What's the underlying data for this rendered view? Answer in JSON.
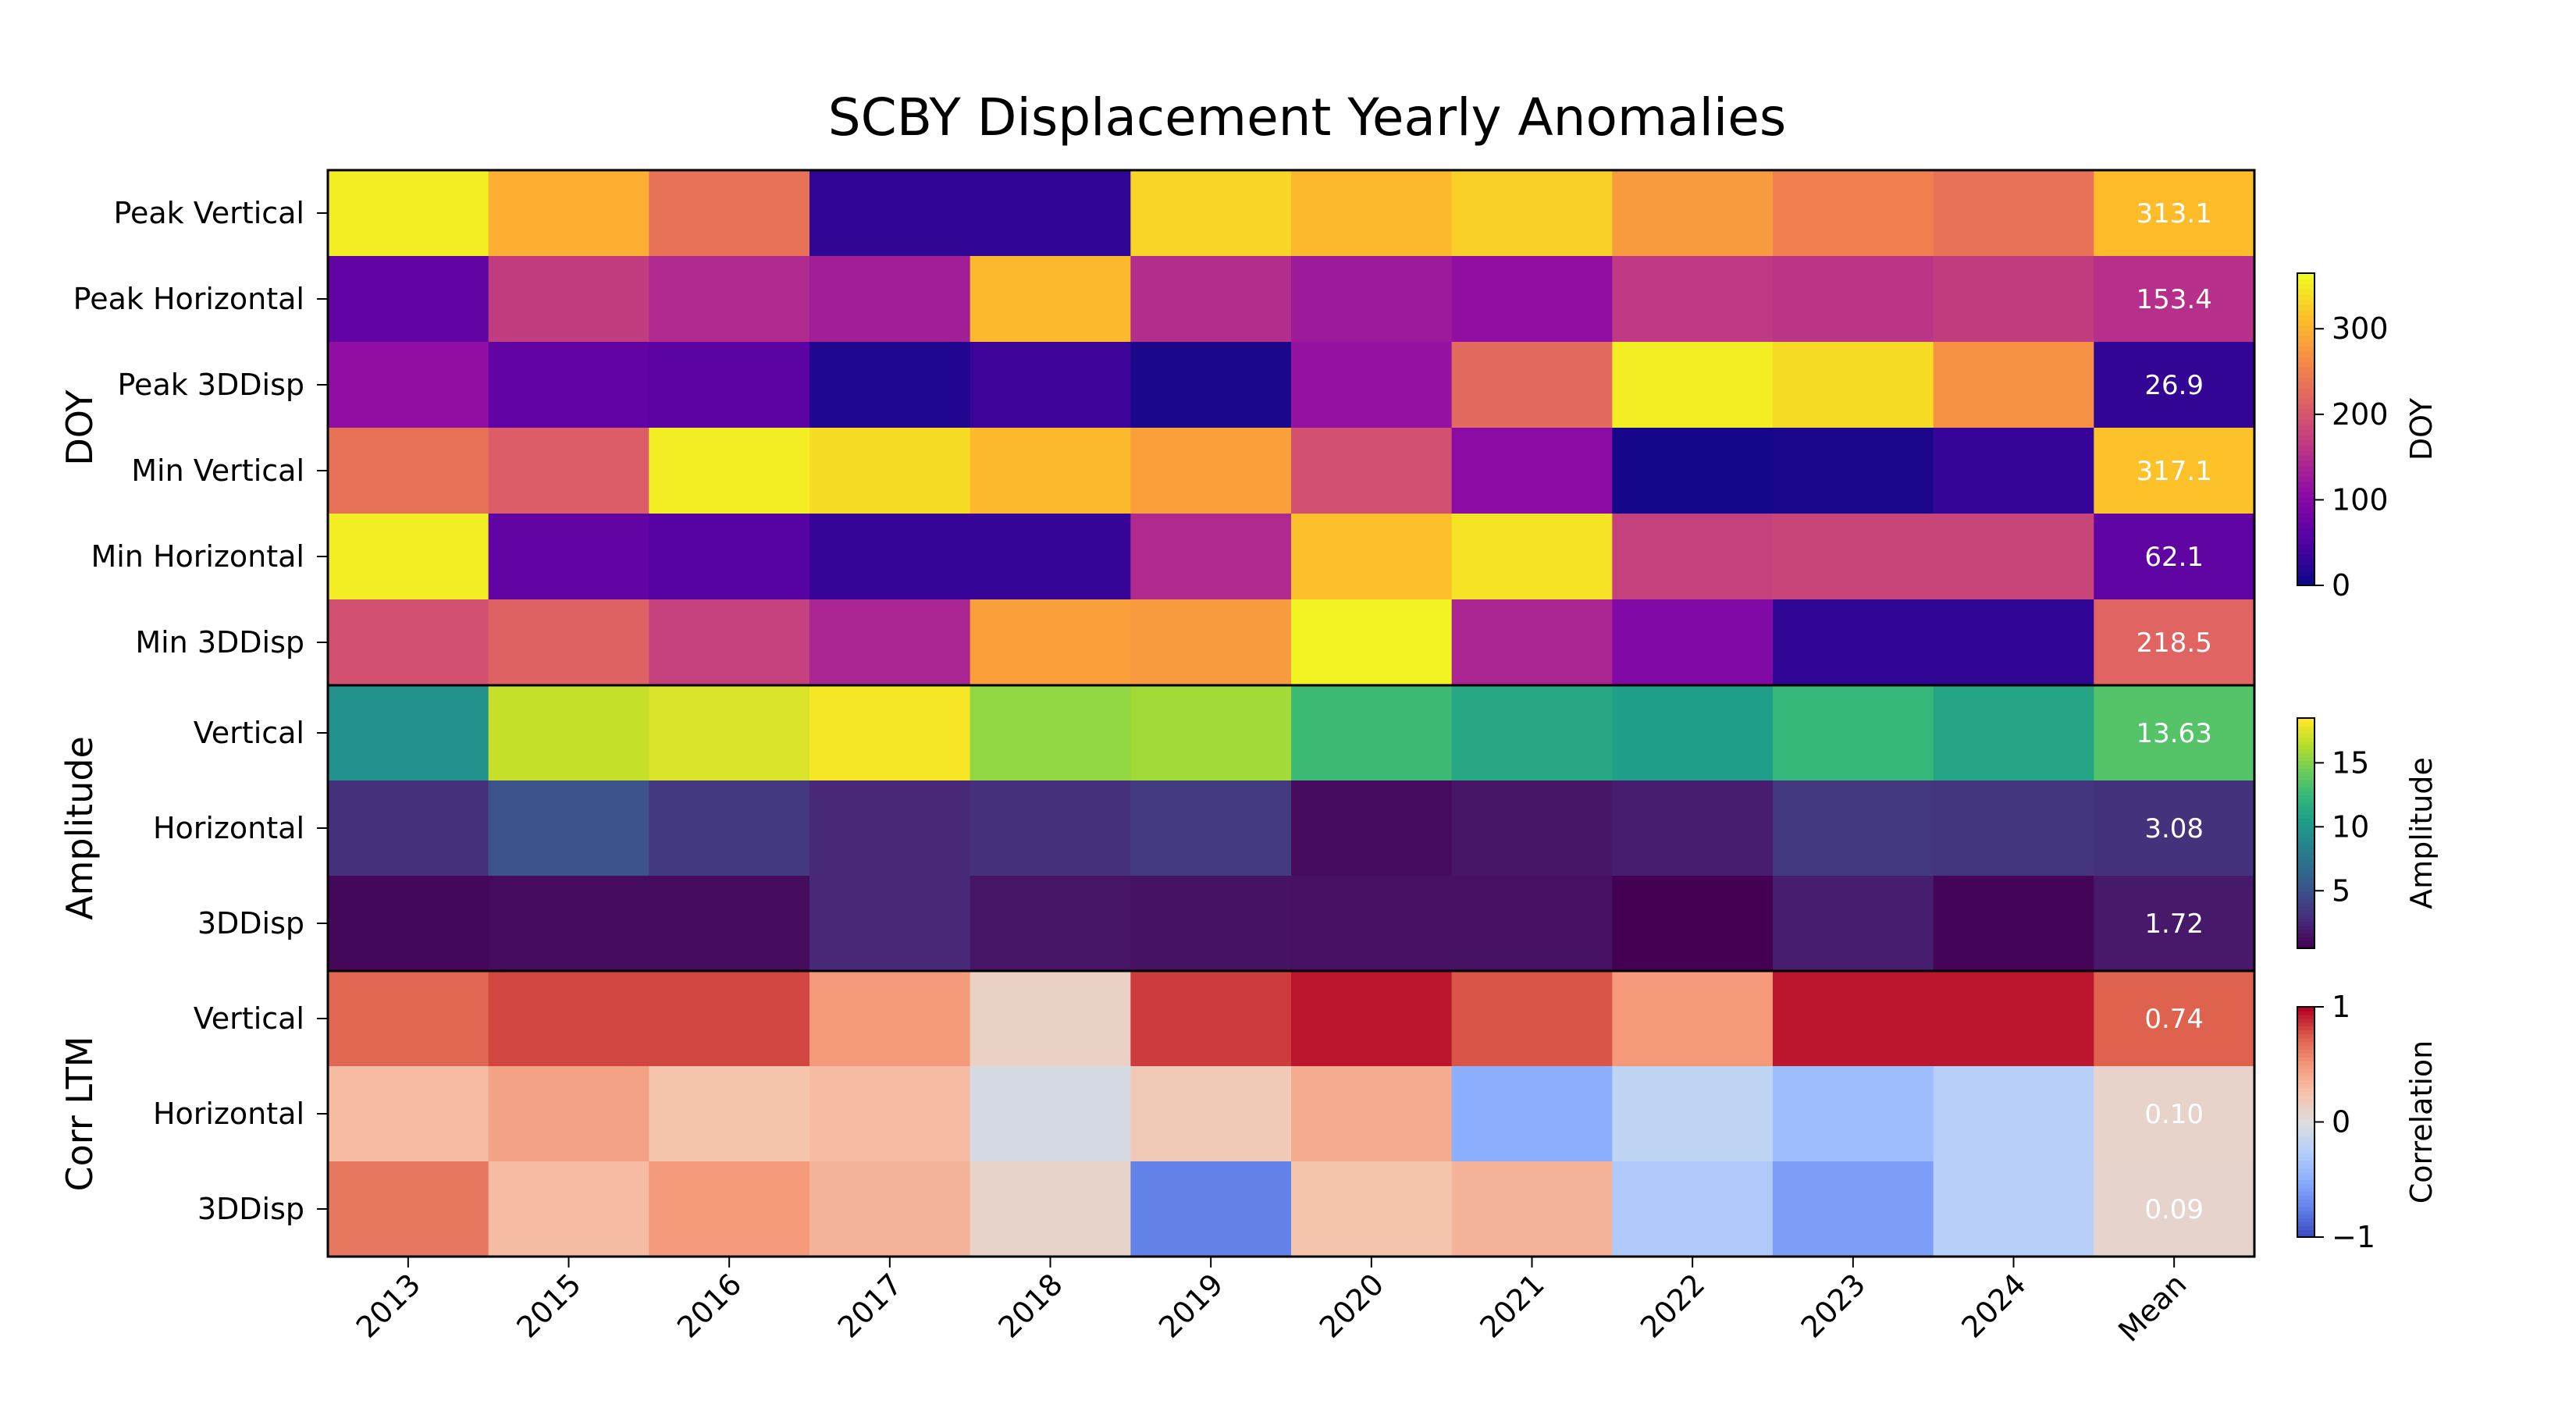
{
  "chart_data": {
    "type": "heatmap",
    "title": "SCBY Displacement Yearly Anomalies",
    "columns": [
      "2013",
      "2015",
      "2016",
      "2017",
      "2018",
      "2019",
      "2020",
      "2021",
      "2022",
      "2023",
      "2024",
      "Mean"
    ],
    "panels": [
      {
        "group_label": "DOY",
        "colormap": "plasma",
        "colorbar": {
          "label": "DOY",
          "range": [
            0,
            365
          ],
          "ticks": [
            "0",
            "100",
            "200",
            "300"
          ],
          "tick_values": [
            0,
            100,
            200,
            300
          ]
        },
        "rows": [
          {
            "label": "Peak Vertical",
            "values": [
              355,
              300,
              235,
              25,
              25,
              335,
              310,
              330,
              280,
              250,
              235,
              313.1
            ],
            "mean_label": "313.1"
          },
          {
            "label": "Peak Horizontal",
            "values": [
              65,
              170,
              145,
              130,
              310,
              150,
              125,
              110,
              165,
              160,
              170,
              153.4
            ],
            "mean_label": "153.4"
          },
          {
            "label": "Peak 3DDisp",
            "values": [
              110,
              65,
              60,
              15,
              35,
              10,
              115,
              225,
              355,
              340,
              270,
              26.9
            ],
            "mean_label": "26.9"
          },
          {
            "label": "Min Vertical",
            "values": [
              235,
              210,
              355,
              340,
              310,
              285,
              195,
              105,
              5,
              10,
              30,
              317.1
            ],
            "mean_label": "317.1"
          },
          {
            "label": "Min Horizontal",
            "values": [
              355,
              65,
              55,
              30,
              30,
              145,
              315,
              345,
              175,
              180,
              180,
              62.1
            ],
            "mean_label": "62.1"
          },
          {
            "label": "Min 3DDisp",
            "values": [
              195,
              215,
              175,
              140,
              285,
              280,
              360,
              140,
              95,
              25,
              25,
              218.5
            ],
            "mean_label": "218.5"
          }
        ]
      },
      {
        "group_label": "Amplitude",
        "colormap": "viridis",
        "colorbar": {
          "label": "Amplitude",
          "range": [
            0.5,
            18.5
          ],
          "ticks": [
            "5",
            "10",
            "15"
          ],
          "tick_values": [
            5,
            10,
            15
          ]
        },
        "rows": [
          {
            "label": "Vertical",
            "values": [
              9.6,
              17.0,
              17.5,
              18.3,
              15.5,
              16.0,
              12.8,
              11.2,
              10.5,
              12.5,
              11.0,
              13.63
            ],
            "mean_label": "13.63"
          },
          {
            "label": "Horizontal",
            "values": [
              3.0,
              5.0,
              3.5,
              2.5,
              3.0,
              3.6,
              1.0,
              1.5,
              2.0,
              3.5,
              3.2,
              3.08
            ],
            "mean_label": "3.08"
          },
          {
            "label": "3DDisp",
            "values": [
              0.8,
              1.0,
              1.0,
              2.5,
              1.5,
              1.4,
              1.3,
              1.3,
              0.5,
              2.0,
              0.7,
              1.72
            ],
            "mean_label": "1.72"
          }
        ]
      },
      {
        "group_label": "Corr LTM",
        "colormap": "coolwarm",
        "colorbar": {
          "label": "Correlation",
          "range": [
            -1,
            1
          ],
          "ticks": [
            "−1",
            "0",
            "1"
          ],
          "tick_values": [
            -1,
            0,
            1
          ]
        },
        "rows": [
          {
            "label": "Vertical",
            "values": [
              0.72,
              0.82,
              0.82,
              0.5,
              0.12,
              0.85,
              0.95,
              0.78,
              0.5,
              0.95,
              0.95,
              0.74
            ],
            "mean_label": "0.74"
          },
          {
            "label": "Horizontal",
            "values": [
              0.3,
              0.45,
              0.25,
              0.3,
              -0.05,
              0.2,
              0.4,
              -0.5,
              -0.2,
              -0.4,
              -0.25,
              0.1
            ],
            "mean_label": "0.10"
          },
          {
            "label": "3DDisp",
            "values": [
              0.65,
              0.3,
              0.5,
              0.35,
              0.1,
              -0.75,
              0.25,
              0.35,
              -0.3,
              -0.6,
              -0.25,
              0.09
            ],
            "mean_label": "0.09"
          }
        ]
      }
    ]
  }
}
